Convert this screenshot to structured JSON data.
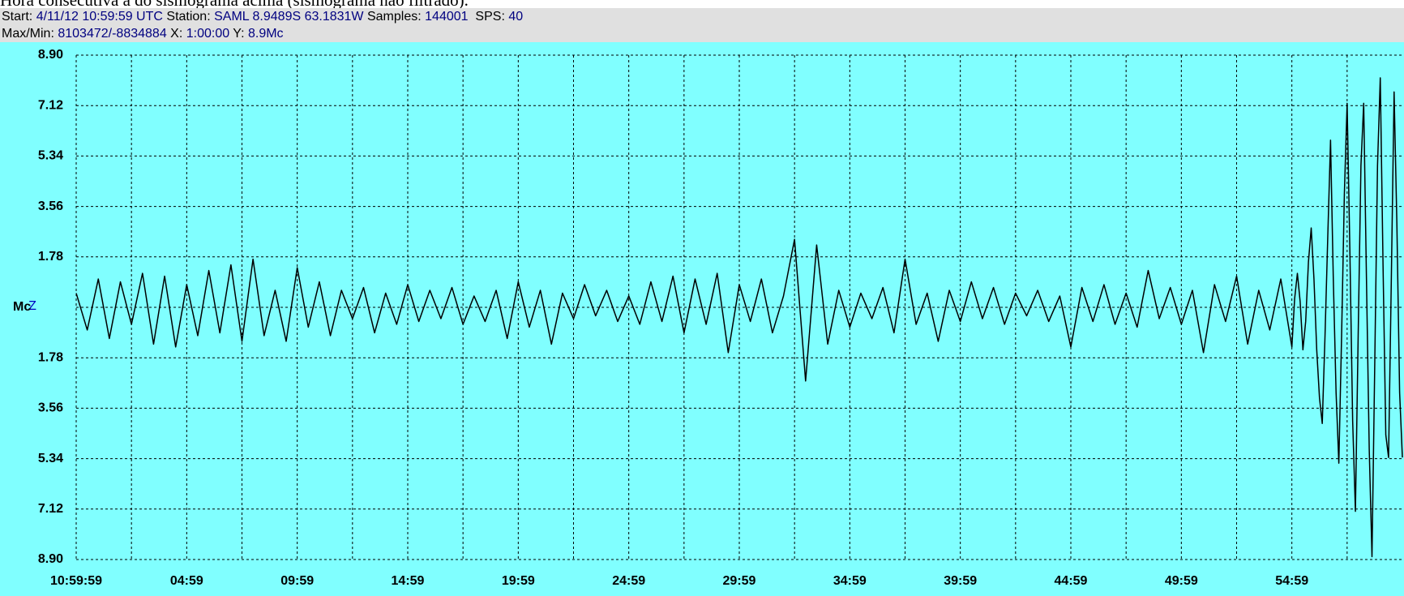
{
  "caption": "Hora consecutiva a do sismograma acima (sismograma não filtrado).",
  "header": {
    "start_label": "Start:",
    "start": "4/11/12 10:59:59 UTC",
    "station_label": "Station:",
    "station": "SAML 8.9489S 63.1831W",
    "samples_label": "Samples:",
    "samples": "144001",
    "sps_label": "SPS:",
    "sps": "40",
    "maxmin_label": "Max/Min:",
    "maxmin": "8103472/-8834884",
    "x_label": "X:",
    "x_span": "1:00:00",
    "y_label": "Y:",
    "y_span": "8.9Mc"
  },
  "chart_data": {
    "type": "line",
    "channel": "Z",
    "color": "#000000",
    "background": "#80ffff",
    "grid": true,
    "xlim": [
      0,
      60
    ],
    "ylim": [
      -8.9,
      8.9
    ],
    "xticks": [
      {
        "value": 0,
        "label": "10:59:59"
      },
      {
        "value": 5,
        "label": "04:59"
      },
      {
        "value": 10,
        "label": "09:59"
      },
      {
        "value": 15,
        "label": "14:59"
      },
      {
        "value": 20,
        "label": "19:59"
      },
      {
        "value": 25,
        "label": "24:59"
      },
      {
        "value": 30,
        "label": "29:59"
      },
      {
        "value": 35,
        "label": "34:59"
      },
      {
        "value": 40,
        "label": "39:59"
      },
      {
        "value": 45,
        "label": "44:59"
      },
      {
        "value": 50,
        "label": "49:59"
      },
      {
        "value": 55,
        "label": "54:59"
      }
    ],
    "xminorticks": [
      2.5,
      7.5,
      12.5,
      17.5,
      22.5,
      27.5,
      32.5,
      37.5,
      42.5,
      47.5,
      52.5,
      57.5
    ],
    "yticks": [
      {
        "value": 8.9,
        "label": "8.90"
      },
      7.12,
      5.34,
      3.56,
      1.78,
      {
        "value": 0,
        "label": "Mc"
      },
      {
        "value": -1.78,
        "label": "1.78"
      },
      {
        "value": -3.56,
        "label": "3.56"
      },
      {
        "value": -5.34,
        "label": "5.34"
      },
      {
        "value": -7.12,
        "label": "7.12"
      },
      {
        "value": -8.9,
        "label": "8.90"
      }
    ],
    "x": [
      0,
      0.5,
      1,
      1.5,
      2,
      2.5,
      3,
      3.5,
      4,
      4.5,
      5,
      5.5,
      6,
      6.5,
      7,
      7.5,
      8,
      8.5,
      9,
      9.5,
      10,
      10.5,
      11,
      11.5,
      12,
      12.5,
      13,
      13.5,
      14,
      14.5,
      15,
      15.5,
      16,
      16.5,
      17,
      17.5,
      18,
      18.5,
      19,
      19.5,
      20,
      20.5,
      21,
      21.5,
      22,
      22.5,
      23,
      23.5,
      24,
      24.5,
      25,
      25.5,
      26,
      26.5,
      27,
      27.5,
      28,
      28.5,
      29,
      29.5,
      30,
      30.5,
      31,
      31.5,
      32,
      32.5,
      33,
      33.5,
      34,
      34.5,
      35,
      35.5,
      36,
      36.5,
      37,
      37.5,
      38,
      38.5,
      39,
      39.5,
      40,
      40.5,
      41,
      41.5,
      42,
      42.5,
      43,
      43.5,
      44,
      44.5,
      45,
      45.5,
      46,
      46.5,
      47,
      47.5,
      48,
      48.5,
      49,
      49.5,
      50,
      50.5,
      51,
      51.5,
      52,
      52.5,
      53,
      53.5,
      54,
      54.5,
      55,
      55.125,
      55.25,
      55.375,
      55.5,
      55.625,
      55.75,
      55.875,
      56,
      56.125,
      56.25,
      56.375,
      56.5,
      56.625,
      56.75,
      56.875,
      57,
      57.125,
      57.25,
      57.375,
      57.5,
      57.625,
      57.75,
      57.875,
      58,
      58.125,
      58.25,
      58.375,
      58.5,
      58.625,
      58.75,
      58.875,
      59,
      59.125,
      59.25,
      59.375,
      59.5,
      59.625,
      59.75,
      59.875,
      60
    ],
    "values": [
      0.5,
      -0.8,
      1.0,
      -1.1,
      0.9,
      -0.6,
      1.2,
      -1.3,
      1.1,
      -1.4,
      0.8,
      -1.0,
      1.3,
      -0.9,
      1.5,
      -1.2,
      1.7,
      -1.0,
      0.6,
      -1.2,
      1.4,
      -0.7,
      0.9,
      -1.0,
      0.6,
      -0.4,
      0.7,
      -0.9,
      0.5,
      -0.6,
      0.8,
      -0.5,
      0.6,
      -0.4,
      0.7,
      -0.6,
      0.4,
      -0.5,
      0.6,
      -1.1,
      0.9,
      -0.7,
      0.6,
      -1.3,
      0.5,
      -0.4,
      0.8,
      -0.3,
      0.6,
      -0.5,
      0.4,
      -0.6,
      0.9,
      -0.5,
      1.1,
      -0.9,
      1.0,
      -0.6,
      1.2,
      -1.6,
      0.8,
      -0.5,
      1.0,
      -0.9,
      0.4,
      2.4,
      -2.6,
      2.2,
      -1.3,
      0.6,
      -0.7,
      0.5,
      -0.4,
      0.7,
      -0.9,
      1.7,
      -0.6,
      0.5,
      -1.2,
      0.6,
      -0.5,
      0.9,
      -0.4,
      0.7,
      -0.6,
      0.5,
      -0.3,
      0.6,
      -0.5,
      0.4,
      -1.4,
      0.7,
      -0.5,
      0.8,
      -0.6,
      0.5,
      -0.7,
      1.3,
      -0.4,
      0.7,
      -0.6,
      0.6,
      -1.6,
      0.8,
      -0.5,
      1.1,
      -1.3,
      0.6,
      -0.8,
      1.0,
      -1.4,
      0.3,
      1.2,
      0.2,
      -1.5,
      -0.5,
      1.6,
      2.8,
      1.0,
      -1.5,
      -3.2,
      -4.1,
      -1.0,
      2.5,
      5.9,
      1.0,
      -3.0,
      -5.5,
      -1.0,
      4.0,
      7.2,
      2.0,
      -4.0,
      -7.2,
      -1.0,
      5.0,
      7.2,
      1.0,
      -5.0,
      -8.8,
      -2.0,
      5.0,
      8.1,
      1.5,
      -4.5,
      -5.3,
      1.0,
      7.6,
      3.0,
      -3.0,
      -5.3
    ]
  }
}
